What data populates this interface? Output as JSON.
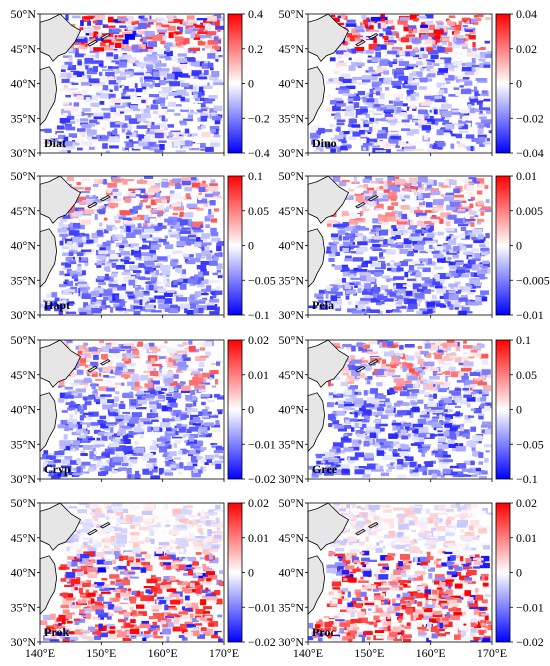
{
  "figure": {
    "lat_labels": [
      "50°N",
      "45°N",
      "40°N",
      "35°N",
      "30°N"
    ],
    "lon_labels": [
      "140°E",
      "150°E",
      "160°E",
      "170°E"
    ]
  },
  "colors": {
    "neg": "#0000ff",
    "mid": "#ffffff",
    "pos": "#ff0000",
    "land": "#e6e6e6",
    "coast": "#000000"
  },
  "chart_data": [
    {
      "type": "heatmap",
      "label": "Diat",
      "range": [
        -0.4,
        0.4
      ],
      "colorbar_ticks": [
        "0.4",
        "0.2",
        "0",
        "−0.2",
        "−0.4"
      ]
    },
    {
      "type": "heatmap",
      "label": "Dino",
      "range": [
        -0.04,
        0.04
      ],
      "colorbar_ticks": [
        "0.04",
        "0.02",
        "0",
        "−0.02",
        "−0.04"
      ]
    },
    {
      "type": "heatmap",
      "label": "Hapt",
      "range": [
        -0.1,
        0.1
      ],
      "colorbar_ticks": [
        "0.1",
        "0.05",
        "0",
        "−0.05",
        "−0.1"
      ]
    },
    {
      "type": "heatmap",
      "label": "Pela",
      "range": [
        -0.01,
        0.01
      ],
      "colorbar_ticks": [
        "0.01",
        "0.005",
        "0",
        "−0.005",
        "−0.01"
      ]
    },
    {
      "type": "heatmap",
      "label": "Cryp",
      "range": [
        -0.02,
        0.02
      ],
      "colorbar_ticks": [
        "0.02",
        "0.01",
        "0",
        "−0.01",
        "−0.02"
      ]
    },
    {
      "type": "heatmap",
      "label": "Gree",
      "range": [
        -0.1,
        0.1
      ],
      "colorbar_ticks": [
        "0.1",
        "0.05",
        "0",
        "−0.05",
        "−0.1"
      ]
    },
    {
      "type": "heatmap",
      "label": "Prok",
      "range": [
        -0.02,
        0.02
      ],
      "colorbar_ticks": [
        "0.02",
        "0.01",
        "0",
        "−0.01",
        "−0.02"
      ]
    },
    {
      "type": "heatmap",
      "label": "Proc",
      "range": [
        -0.02,
        0.02
      ],
      "colorbar_ticks": [
        "0.02",
        "0.01",
        "0",
        "−0.01",
        "−0.02"
      ]
    }
  ]
}
